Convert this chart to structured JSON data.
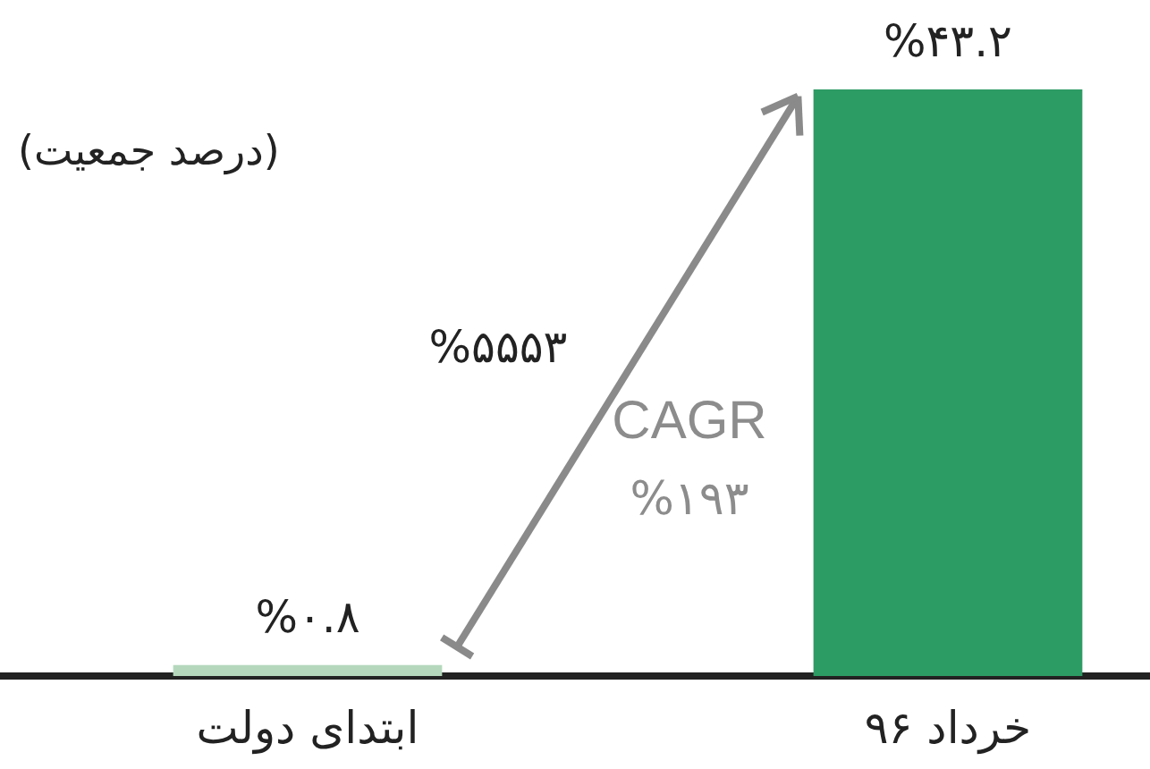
{
  "chart_data": {
    "type": "bar",
    "ylabel": "(درصد جمعیت)",
    "categories": [
      "ابتدای دولت",
      "خرداد ۹۶"
    ],
    "values": [
      0.8,
      43.2
    ],
    "colors": [
      "#b5d8bd",
      "#2d9b64"
    ],
    "value_labels": [
      "%۰.۸",
      "%۴۳.۲"
    ],
    "annotations": [
      "%۵۵۵۳",
      "CAGR",
      "%۱۹۳"
    ]
  }
}
